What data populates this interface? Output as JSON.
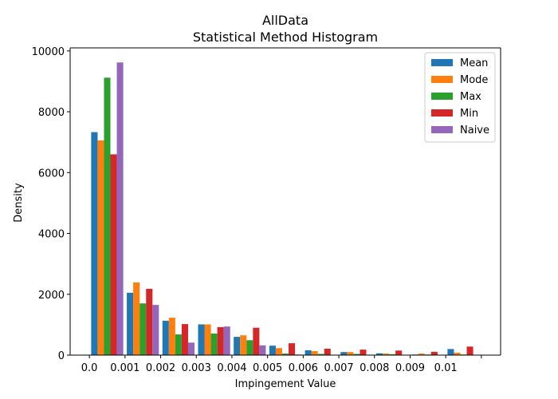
{
  "chart_data": {
    "type": "bar",
    "title": "AllData",
    "subtitle": "Statistical Method Histogram",
    "xlabel": "Impingement Value",
    "ylabel": "Density",
    "ylim": [
      0,
      10100
    ],
    "xlim": [
      -0.00054,
      0.01154
    ],
    "bin_width": 0.001,
    "categories": [
      "0.0",
      "0.001",
      "0.002",
      "0.003",
      "0.004",
      "0.005",
      "0.006",
      "0.007",
      "0.008",
      "0.009",
      "0.01"
    ],
    "x_ticks": [
      0.0,
      0.001,
      0.002,
      0.003,
      0.004,
      0.005,
      0.006,
      0.007,
      0.008,
      0.009,
      0.01,
      0.011
    ],
    "x_tick_labels": [
      "0.0",
      "0.001",
      "0.002",
      "0.003",
      "0.004",
      "0.005",
      "0.006",
      "0.007",
      "0.008",
      "0.009",
      "0.01",
      ""
    ],
    "y_ticks": [
      0,
      2000,
      4000,
      6000,
      8000,
      10000
    ],
    "y_tick_labels": [
      "0",
      "2000",
      "4000",
      "6000",
      "8000",
      "10000"
    ],
    "legend_position": "top-right",
    "grid": false,
    "series": [
      {
        "name": "Mean",
        "color": "#1f77b4",
        "values": [
          7330,
          2050,
          1130,
          1010,
          600,
          310,
          160,
          100,
          60,
          20,
          200
        ]
      },
      {
        "name": "Mode",
        "color": "#ff7f0e",
        "values": [
          7060,
          2390,
          1230,
          1010,
          650,
          230,
          130,
          100,
          50,
          50,
          80
        ]
      },
      {
        "name": "Max",
        "color": "#2ca02c",
        "values": [
          9120,
          1700,
          680,
          710,
          490,
          50,
          40,
          40,
          30,
          20,
          20
        ]
      },
      {
        "name": "Min",
        "color": "#d62728",
        "values": [
          6600,
          2180,
          1020,
          920,
          900,
          390,
          210,
          180,
          150,
          110,
          280
        ]
      },
      {
        "name": "Naive",
        "color": "#9467bd",
        "values": [
          9620,
          1650,
          410,
          940,
          320,
          20,
          10,
          10,
          10,
          10,
          10
        ]
      }
    ]
  }
}
